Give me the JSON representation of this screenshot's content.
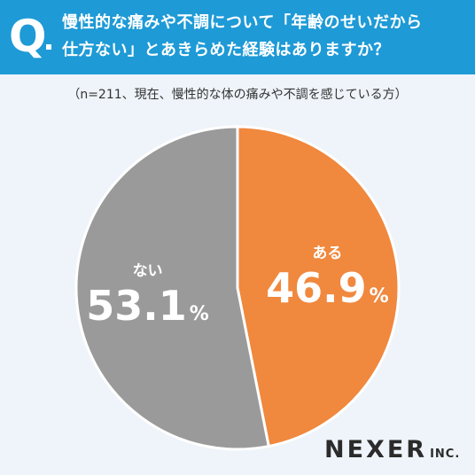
{
  "header": {
    "q_label": "Q",
    "question_line1": "慢性的な痛みや不調について「年齢のせいだから",
    "question_line2": "仕方ない」とあきらめた経験はありますか？"
  },
  "subtitle": "（n=211、現在、慢性的な体の痛みや不調を感じている方）",
  "chart_data": {
    "type": "pie",
    "title": "慢性的な痛みや不調について「年齢のせいだから仕方ない」とあきらめた経験はありますか？",
    "categories": [
      "ある",
      "ない"
    ],
    "values": [
      46.9,
      53.1
    ],
    "value_labels": [
      "46.9",
      "53.1"
    ],
    "unit": "%",
    "colors": [
      "#f0883e",
      "#9a9a9a"
    ],
    "start": "12 o'clock, clockwise"
  },
  "brand": {
    "name": "NEXER",
    "suffix": "INC."
  }
}
